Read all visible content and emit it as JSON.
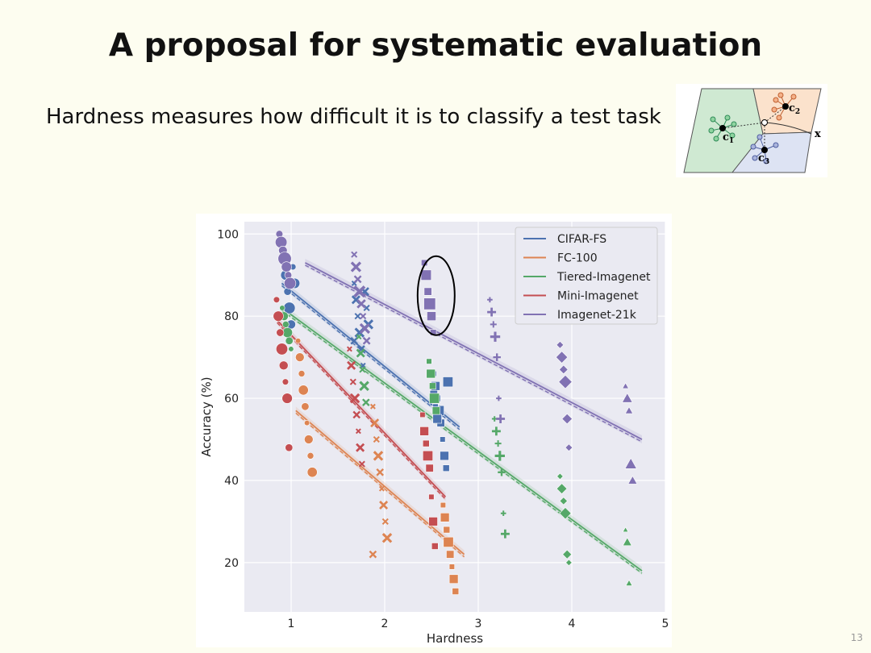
{
  "slide": {
    "title": "A proposal for systematic evaluation",
    "body": "Hardness measures how difficult it is to classify a test task",
    "page_number": "13"
  },
  "diagram": {
    "labels": [
      "c",
      "2",
      "c",
      "1",
      "c",
      "3",
      "x"
    ]
  },
  "chart_data": {
    "type": "scatter",
    "xlabel": "Hardness",
    "ylabel": "Accuracy (%)",
    "xlim": [
      0.5,
      5.0
    ],
    "ylim": [
      8,
      103
    ],
    "xticks": [
      1,
      2,
      3,
      4,
      5
    ],
    "yticks": [
      20,
      40,
      60,
      80,
      100
    ],
    "grid": true,
    "legend_position": "top-right",
    "highlight": {
      "x": 2.55,
      "y": 85,
      "shape": "ellipse"
    },
    "series": [
      {
        "name": "CIFAR-FS",
        "color": "#4c72b0",
        "fit": {
          "x": [
            0.9,
            2.8
          ],
          "y": [
            88,
            53
          ]
        },
        "clusters": [
          {
            "x": 1.0,
            "marker": "circle",
            "size": 7,
            "y": [
              94,
              90,
              86,
              82,
              78,
              92,
              88
            ]
          },
          {
            "x": 1.75,
            "marker": "x",
            "size": 5,
            "y": [
              88,
              84,
              80,
              76,
              72,
              68,
              86,
              82,
              78,
              74
            ]
          },
          {
            "x": 2.6,
            "marker": "square",
            "size": 6,
            "y": [
              66,
              63,
              60,
              57,
              54,
              50,
              46,
              43,
              64,
              61,
              58,
              55
            ]
          }
        ]
      },
      {
        "name": "FC-100",
        "color": "#dd8452",
        "fit": {
          "x": [
            1.05,
            2.85
          ],
          "y": [
            57,
            22
          ]
        },
        "clusters": [
          {
            "x": 1.15,
            "marker": "circle",
            "size": 6,
            "y": [
              74,
              70,
              66,
              62,
              58,
              54,
              50,
              46,
              42
            ]
          },
          {
            "x": 1.95,
            "marker": "x",
            "size": 5,
            "y": [
              58,
              54,
              50,
              46,
              42,
              38,
              34,
              30,
              26,
              22
            ]
          },
          {
            "x": 2.7,
            "marker": "square",
            "size": 6,
            "y": [
              34,
              31,
              28,
              25,
              22,
              19,
              16,
              13
            ]
          }
        ]
      },
      {
        "name": "Tiered-Imagenet",
        "color": "#55a868",
        "fit": {
          "x": [
            0.9,
            4.75
          ],
          "y": [
            82,
            18
          ]
        },
        "clusters": [
          {
            "x": 0.98,
            "marker": "circle",
            "size": 6,
            "y": [
              82,
              80,
              78,
              76,
              74,
              72
            ]
          },
          {
            "x": 1.8,
            "marker": "x",
            "size": 5,
            "y": [
              75,
              71,
              67,
              63,
              59
            ]
          },
          {
            "x": 2.55,
            "marker": "square",
            "size": 6,
            "y": [
              69,
              66,
              63,
              60,
              57
            ]
          },
          {
            "x": 3.25,
            "marker": "plus",
            "size": 6,
            "y": [
              55,
              52,
              49,
              46,
              42,
              32,
              27
            ]
          },
          {
            "x": 3.95,
            "marker": "diamond",
            "size": 7,
            "y": [
              41,
              38,
              35,
              32,
              22,
              20
            ]
          },
          {
            "x": 4.65,
            "marker": "triangle",
            "size": 6,
            "y": [
              28,
              25,
              15
            ]
          }
        ]
      },
      {
        "name": "Mini-Imagenet",
        "color": "#c44e52",
        "fit": {
          "x": [
            0.85,
            2.65
          ],
          "y": [
            79,
            36
          ]
        },
        "clusters": [
          {
            "x": 0.92,
            "marker": "circle",
            "size": 7,
            "y": [
              84,
              80,
              76,
              72,
              68,
              64,
              60,
              48
            ]
          },
          {
            "x": 1.7,
            "marker": "x",
            "size": 5,
            "y": [
              72,
              68,
              64,
              60,
              56,
              52,
              48,
              44
            ]
          },
          {
            "x": 2.48,
            "marker": "square",
            "size": 6,
            "y": [
              56,
              52,
              49,
              46,
              43,
              36,
              30,
              24
            ]
          }
        ]
      },
      {
        "name": "Imagenet-21k",
        "color": "#8172b3",
        "fit": {
          "x": [
            1.15,
            4.75
          ],
          "y": [
            93,
            50
          ]
        },
        "clusters": [
          {
            "x": 0.95,
            "marker": "circle",
            "size": 8,
            "y": [
              100,
              98,
              96,
              94,
              92,
              90,
              88
            ]
          },
          {
            "x": 1.75,
            "marker": "x",
            "size": 6,
            "y": [
              95,
              92,
              89,
              86,
              83,
              80,
              77,
              74
            ]
          },
          {
            "x": 2.5,
            "marker": "square",
            "size": 7,
            "y": [
              93,
              90,
              86,
              83,
              80,
              76
            ]
          },
          {
            "x": 3.2,
            "marker": "plus",
            "size": 6,
            "y": [
              84,
              81,
              78,
              75,
              70,
              60,
              55
            ]
          },
          {
            "x": 3.95,
            "marker": "diamond",
            "size": 8,
            "y": [
              73,
              70,
              67,
              64,
              55,
              48
            ]
          },
          {
            "x": 4.65,
            "marker": "triangle",
            "size": 7,
            "y": [
              63,
              60,
              57,
              44,
              40
            ]
          }
        ]
      }
    ]
  }
}
